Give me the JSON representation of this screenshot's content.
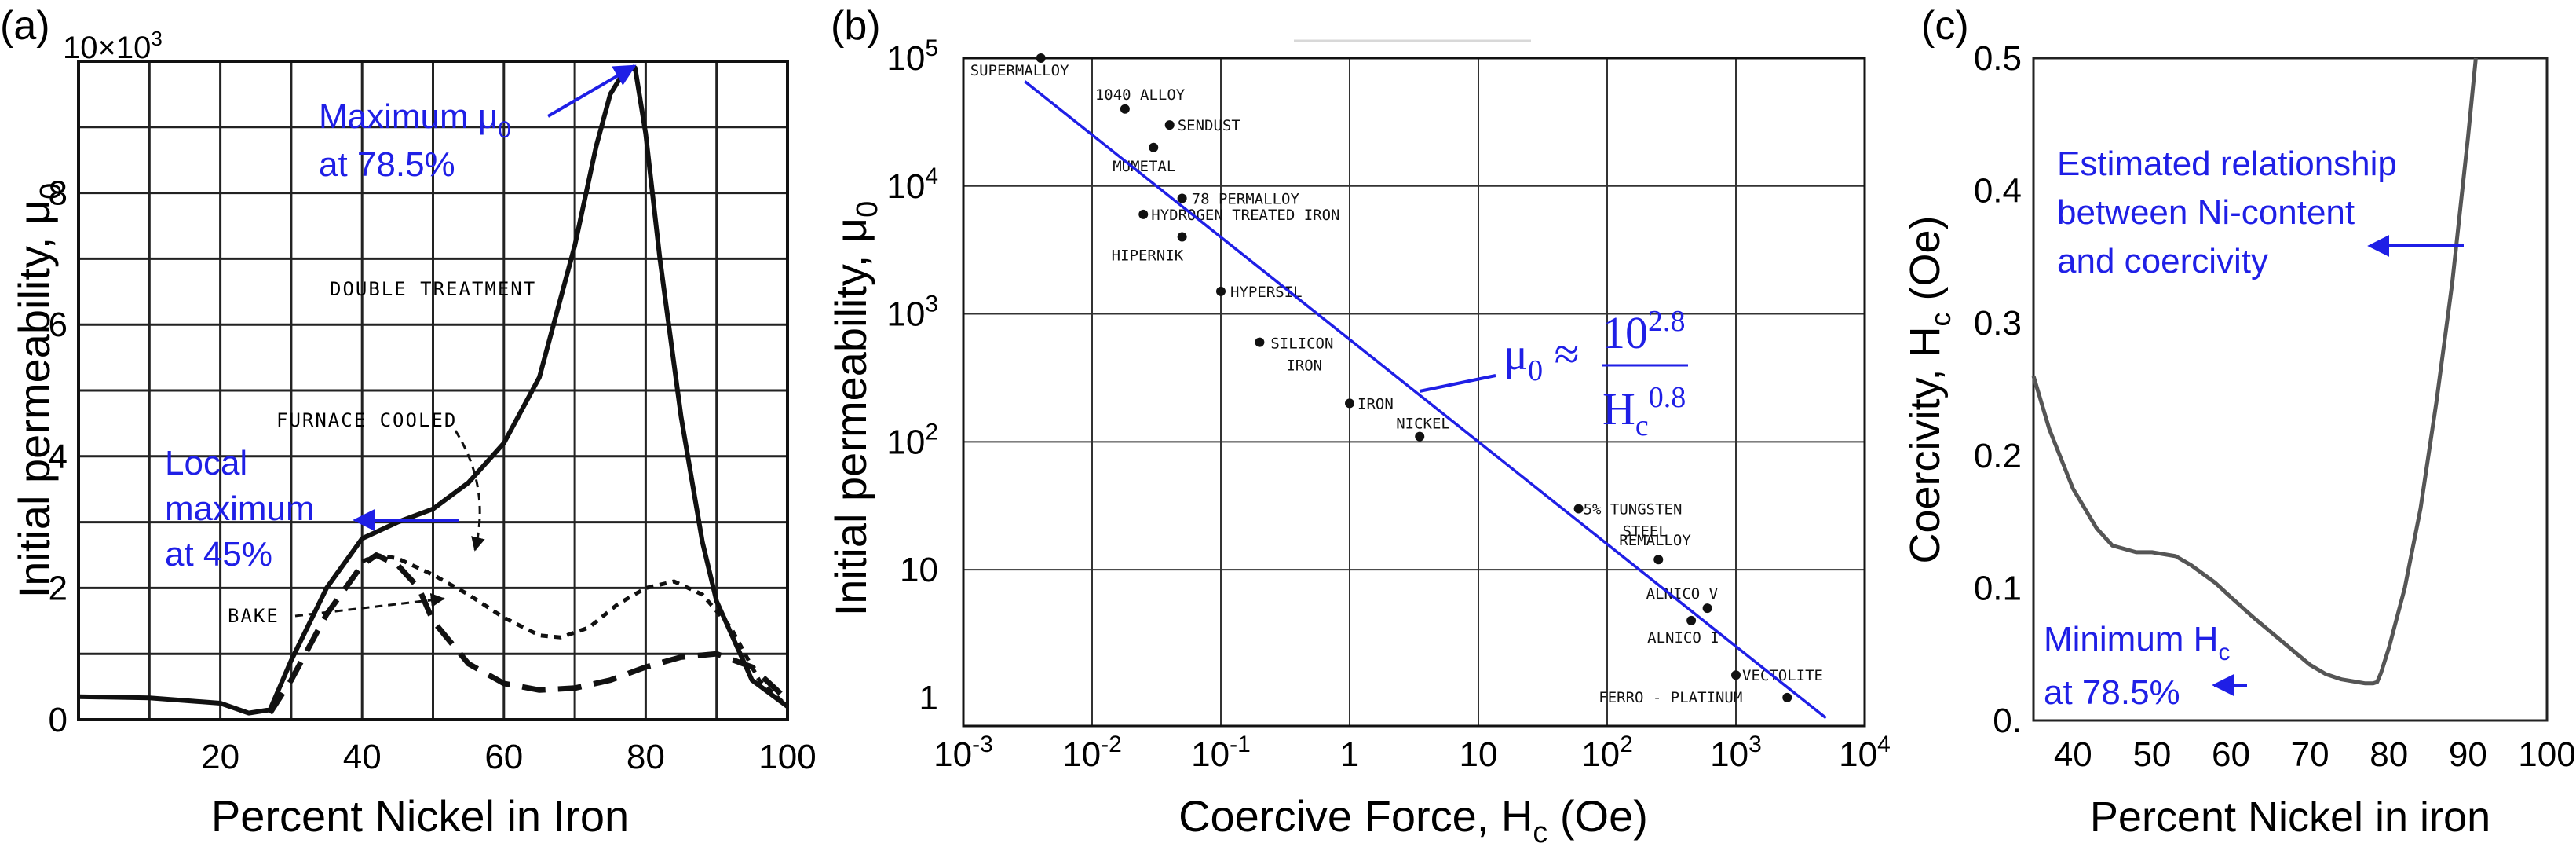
{
  "panels": {
    "a": {
      "letter": "(a)",
      "ylabel": "Initial permeability, μ",
      "ylabel_sub": "0",
      "xlabel": "Percent Nickel in Iron",
      "ytop_label": "10×10",
      "ytop_sup": "3",
      "xticks": [
        "20",
        "40",
        "60",
        "80",
        "100"
      ],
      "yticks": [
        "0",
        "2",
        "4",
        "6",
        "8"
      ],
      "curve_labels": {
        "double": "DOUBLE TREATMENT",
        "furnace": "FURNACE COOLED",
        "bake": "BAKE"
      },
      "annotations": {
        "max_line1": "Maximum μ",
        "max_sub": "0",
        "max_line2": "at 78.5%",
        "local1": "Local",
        "local2": "maximum",
        "local3": "at 45%"
      },
      "accent_color": "#1f1fe6"
    },
    "b": {
      "letter": "(b)",
      "ylabel": "Initial permeability, μ",
      "ylabel_sub": "0",
      "xlabel": "Coercive Force, H",
      "xlabel_sub": "c",
      "xlabel_tail": " (Oe)",
      "xtick_bases": [
        "10",
        "10",
        "10",
        "1",
        "10",
        "10",
        "10",
        "10"
      ],
      "xtick_exps": [
        "-3",
        "-2",
        "-1",
        "",
        "",
        "2",
        "3",
        "4"
      ],
      "ytick_bases": [
        "1",
        "10",
        "10",
        "10",
        "10",
        "10"
      ],
      "ytick_exps": [
        "",
        "",
        "2",
        "3",
        "4",
        "5"
      ],
      "formula": {
        "lhs": "μ",
        "lhs_sub": "0",
        "approx": " ≈ ",
        "num": "10",
        "num_sup": "2.8",
        "den": "H",
        "den_sub": "c",
        "den_sup": "0.8"
      },
      "accent_color": "#1f1fe6"
    },
    "c": {
      "letter": "(c)",
      "ylabel": "Coercivity, H",
      "ylabel_sub": "c",
      "ylabel_tail": " (Oe)",
      "xlabel": "Percent Nickel in iron",
      "xticks": [
        "40",
        "50",
        "60",
        "70",
        "80",
        "90",
        "100"
      ],
      "yticks": [
        "0.",
        "0.1",
        "0.2",
        "0.3",
        "0.4",
        "0.5"
      ],
      "annotations": {
        "est1": "Estimated relationship",
        "est2": "between Ni-content",
        "est3": "and coercivity",
        "min1": "Minimum H",
        "min_sub": "c",
        "min2": "at 78.5%"
      },
      "curve_color": "#555555",
      "accent_color": "#1f1fe6"
    }
  },
  "chart_data": [
    {
      "type": "line",
      "xlabel": "Percent Nickel in Iron",
      "ylabel": "Initial permeability, μ0",
      "xlim": [
        0,
        100
      ],
      "ylim": [
        0,
        10000
      ],
      "grid": true,
      "series": [
        {
          "name": "DOUBLE TREATMENT",
          "style": "solid",
          "x": [
            0,
            10,
            20,
            24,
            27,
            30,
            35,
            40,
            45,
            50,
            55,
            60,
            65,
            70,
            73,
            75,
            77,
            78.5,
            80,
            82,
            85,
            88,
            90,
            95,
            100
          ],
          "y": [
            350,
            330,
            250,
            100,
            150,
            900,
            2000,
            2750,
            3000,
            3200,
            3600,
            4200,
            5200,
            7200,
            8700,
            9500,
            9850,
            9900,
            8900,
            7000,
            4600,
            2700,
            1800,
            600,
            200
          ]
        },
        {
          "name": "FURNACE COOLED",
          "style": "dotted",
          "x": [
            40,
            42,
            45,
            50,
            55,
            60,
            65,
            68,
            72,
            76,
            80,
            84,
            88,
            92,
            96,
            100
          ],
          "y": [
            2400,
            2500,
            2450,
            2200,
            1900,
            1550,
            1280,
            1250,
            1400,
            1750,
            2000,
            2100,
            1900,
            1400,
            600,
            200
          ]
        },
        {
          "name": "BAKE",
          "style": "dashed",
          "x": [
            27,
            30,
            35,
            40,
            42,
            45,
            48,
            50,
            55,
            60,
            65,
            70,
            75,
            80,
            85,
            90,
            95,
            100
          ],
          "y": [
            100,
            600,
            1600,
            2350,
            2500,
            2350,
            2000,
            1500,
            850,
            550,
            450,
            480,
            600,
            800,
            950,
            1000,
            800,
            300
          ]
        }
      ]
    },
    {
      "type": "scatter",
      "xlabel": "Coercive Force, Hc (Oe)",
      "ylabel": "Initial permeability, μ0",
      "xscale": "log",
      "yscale": "log",
      "xlim": [
        0.001,
        10000
      ],
      "ylim": [
        0.6,
        100000
      ],
      "grid": true,
      "points": [
        {
          "label": "SUPERMALLOY",
          "x": 0.004,
          "y": 100000
        },
        {
          "label": "1040 ALLOY",
          "x": 0.018,
          "y": 40000
        },
        {
          "label": "SENDUST",
          "x": 0.04,
          "y": 30000
        },
        {
          "label": "MUMETAL",
          "x": 0.03,
          "y": 20000
        },
        {
          "label": "78 PERMALLOY",
          "x": 0.05,
          "y": 8000
        },
        {
          "label": "HYDROGEN TREATED IRON",
          "x": 0.025,
          "y": 6000
        },
        {
          "label": "HIPERNIK",
          "x": 0.05,
          "y": 4000
        },
        {
          "label": "HYPERSIL",
          "x": 0.1,
          "y": 1500
        },
        {
          "label": "SILICON IRON",
          "x": 0.2,
          "y": 600
        },
        {
          "label": "IRON",
          "x": 1.0,
          "y": 200
        },
        {
          "label": "NICKEL",
          "x": 3.5,
          "y": 110
        },
        {
          "label": "5% TUNGSTEN STEEL",
          "x": 60,
          "y": 30
        },
        {
          "label": "REMALLOY",
          "x": 250,
          "y": 12
        },
        {
          "label": "ALNICO V",
          "x": 600,
          "y": 5
        },
        {
          "label": "ALNICO I",
          "x": 450,
          "y": 4
        },
        {
          "label": "VECTOLITE",
          "x": 1000,
          "y": 1.5
        },
        {
          "label": "FERRO-PLATINUM",
          "x": 2500,
          "y": 1.0
        }
      ],
      "fit": {
        "coef": 630.96,
        "exponent": -0.8,
        "x": [
          0.003,
          5000
        ]
      }
    },
    {
      "type": "line",
      "xlabel": "Percent Nickel in iron",
      "ylabel": "Coercivity, Hc (Oe)",
      "xlim": [
        35,
        100
      ],
      "ylim": [
        0,
        0.5
      ],
      "grid": false,
      "series": [
        {
          "x": [
            35,
            37,
            40,
            43,
            45,
            48,
            50,
            53,
            55,
            58,
            60,
            63,
            65,
            68,
            70,
            72,
            74,
            76,
            77,
            78,
            78.5,
            79,
            80,
            82,
            84,
            86,
            88,
            90,
            91
          ],
          "y": [
            0.26,
            0.22,
            0.175,
            0.145,
            0.132,
            0.127,
            0.127,
            0.124,
            0.117,
            0.104,
            0.093,
            0.077,
            0.067,
            0.052,
            0.042,
            0.035,
            0.031,
            0.029,
            0.028,
            0.028,
            0.029,
            0.036,
            0.055,
            0.1,
            0.16,
            0.24,
            0.33,
            0.44,
            0.5
          ]
        }
      ]
    }
  ]
}
